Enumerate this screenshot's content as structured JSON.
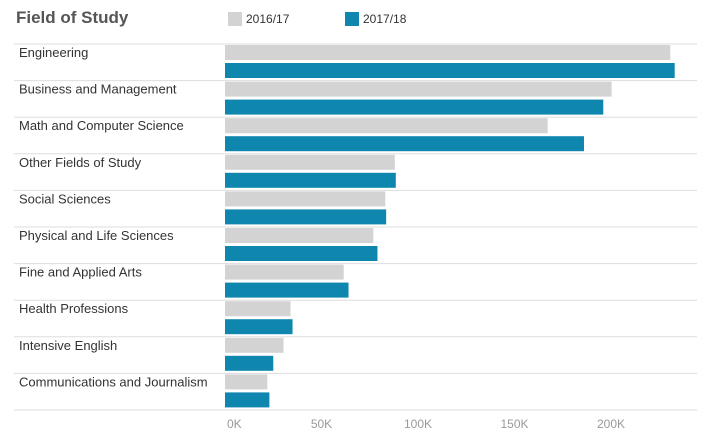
{
  "chart_data": {
    "type": "bar",
    "orientation": "horizontal",
    "title": "Field of Study",
    "categories": [
      "Engineering",
      "Business and Management",
      "Math and Computer Science",
      "Other Fields of Study",
      "Social Sciences",
      "Physical and Life Sciences",
      "Fine and Applied Arts",
      "Health Professions",
      "Intensive English",
      "Communications and Journalism"
    ],
    "series": [
      {
        "name": "2016/17",
        "color": "#d3d3d3",
        "values": [
          230711,
          200312,
          167180,
          88000,
          83046,
          76838,
          61506,
          33947,
          30309,
          21913
        ]
      },
      {
        "name": "2017/18",
        "color": "#0f86ad",
        "values": [
          233000,
          196000,
          186000,
          88500,
          83500,
          79000,
          64000,
          35000,
          25000,
          23000
        ]
      }
    ],
    "xlim": [
      0,
      245000
    ],
    "xticks": [
      0,
      50000,
      100000,
      150000,
      200000
    ],
    "xtick_labels": [
      "0K",
      "50K",
      "100K",
      "150K",
      "200K"
    ],
    "legend_position": "top",
    "grid": false
  }
}
